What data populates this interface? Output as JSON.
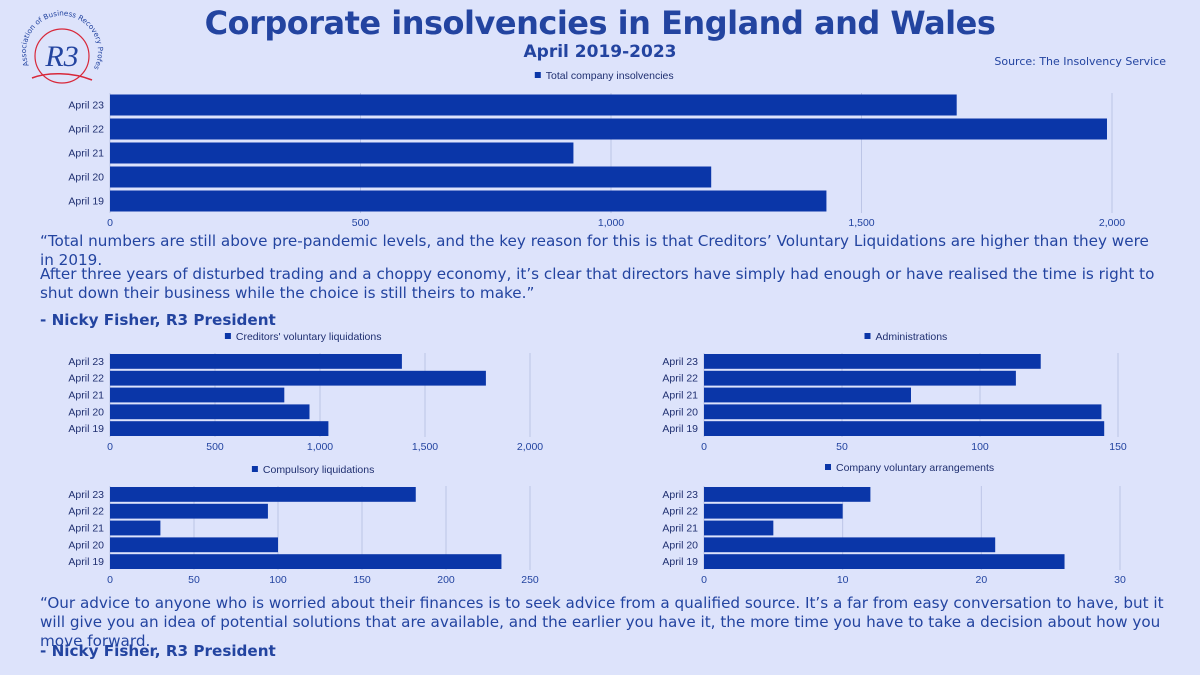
{
  "header": {
    "title": "Corporate insolvencies in England and Wales",
    "subtitle": "April 2019-2023",
    "source": "Source: The Insolvency Service",
    "logo_text": "R3",
    "logo_ring_text": "Association of Business Recovery Professionals"
  },
  "quotes": {
    "quote1_p1": "“Total numbers are still above pre-pandemic levels, and the key reason for this is that Creditors’ Voluntary Liquidations are higher than they were in 2019.",
    "quote1_p2": "After three years of disturbed trading and a choppy economy, it’s clear that directors have simply had enough or have realised the time is right to shut down their business while the choice is still theirs to make.”",
    "attrib1": "- Nicky Fisher, R3 President",
    "quote2": "“Our advice to anyone who is worried about their finances is to seek advice from a qualified source. It’s a far from easy conversation to have, but it will give you an idea of potential solutions that are available, and the earlier you have it, the more time you have to take a decision about how you move forward.",
    "attrib2": "- Nicky Fisher, R3 President"
  },
  "colors": {
    "bar": "#0a36a8",
    "text": "#2344a0",
    "grid": "#bcc5e6",
    "background": "#dde3fb",
    "logo_red": "#d8283a"
  },
  "chart_data": [
    {
      "id": "total",
      "type": "bar",
      "orientation": "horizontal",
      "categories": [
        "April 23",
        "April 22",
        "April 21",
        "April 20",
        "April 19"
      ],
      "series": [
        {
          "name": "Total company insolvencies",
          "values": [
            1690,
            1990,
            925,
            1200,
            1430
          ]
        }
      ],
      "xlim": [
        0,
        2000
      ],
      "xticks": [
        0,
        500,
        1000,
        1500,
        2000
      ],
      "xtick_labels": [
        "0",
        "500",
        "1,000",
        "1,500",
        "2,000"
      ],
      "grid": true,
      "legend": "top-center"
    },
    {
      "id": "cvl",
      "type": "bar",
      "orientation": "horizontal",
      "categories": [
        "April 23",
        "April 22",
        "April 21",
        "April 20",
        "April 19"
      ],
      "series": [
        {
          "name": "Creditors' voluntary liquidations",
          "values": [
            1390,
            1790,
            830,
            950,
            1040
          ]
        }
      ],
      "xlim": [
        0,
        2000
      ],
      "xticks": [
        0,
        500,
        1000,
        1500,
        2000
      ],
      "xtick_labels": [
        "0",
        "500",
        "1,000",
        "1,500",
        "2,000"
      ],
      "grid": true,
      "legend": "top-center"
    },
    {
      "id": "admin",
      "type": "bar",
      "orientation": "horizontal",
      "categories": [
        "April 23",
        "April 22",
        "April 21",
        "April 20",
        "April 19"
      ],
      "series": [
        {
          "name": "Administrations",
          "values": [
            122,
            113,
            75,
            144,
            145
          ]
        }
      ],
      "xlim": [
        0,
        150
      ],
      "xticks": [
        0,
        50,
        100,
        150
      ],
      "xtick_labels": [
        "0",
        "50",
        "100",
        "150"
      ],
      "grid": true,
      "legend": "top-center"
    },
    {
      "id": "compulsory",
      "type": "bar",
      "orientation": "horizontal",
      "categories": [
        "April 23",
        "April 22",
        "April 21",
        "April 20",
        "April 19"
      ],
      "series": [
        {
          "name": "Compulsory liquidations",
          "values": [
            182,
            94,
            30,
            100,
            233
          ]
        }
      ],
      "xlim": [
        0,
        250
      ],
      "xticks": [
        0,
        50,
        100,
        150,
        200,
        250
      ],
      "xtick_labels": [
        "0",
        "50",
        "100",
        "150",
        "200",
        "250"
      ],
      "grid": true,
      "legend": "top-center"
    },
    {
      "id": "cva",
      "type": "bar",
      "orientation": "horizontal",
      "categories": [
        "April 23",
        "April 22",
        "April 21",
        "April 20",
        "April 19"
      ],
      "series": [
        {
          "name": "Company voluntary arrangements",
          "values": [
            12,
            10,
            5,
            21,
            26
          ]
        }
      ],
      "xlim": [
        0,
        30
      ],
      "xticks": [
        0,
        10,
        20,
        30
      ],
      "xtick_labels": [
        "0",
        "10",
        "20",
        "30"
      ],
      "grid": true,
      "legend": "top-center"
    }
  ]
}
